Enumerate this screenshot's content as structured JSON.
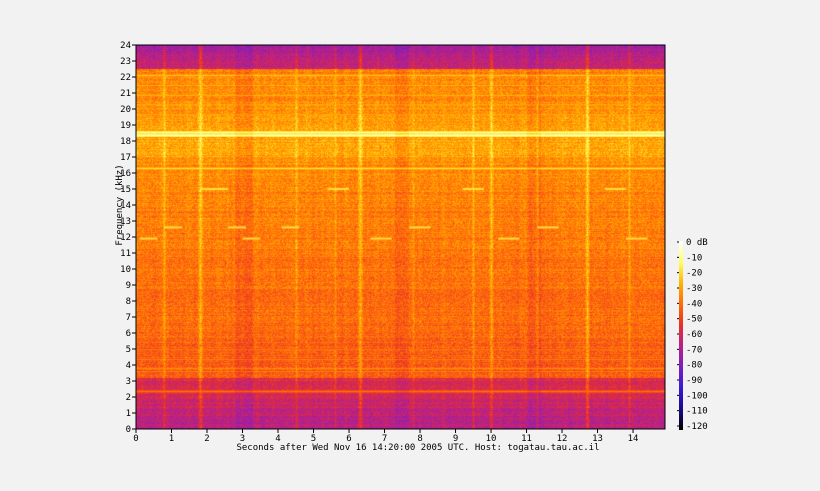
{
  "chart_data": {
    "type": "heatmap",
    "title": "",
    "xlabel": "Seconds after Wed Nov 16 14:20:00 2005 UTC. Host: togatau.tau.ac.il",
    "ylabel": "Frequency (kHz)",
    "xlim": [
      0,
      14.9
    ],
    "ylim": [
      0,
      24
    ],
    "x_ticks": [
      0,
      1,
      2,
      3,
      4,
      5,
      6,
      7,
      8,
      9,
      10,
      11,
      12,
      13,
      14
    ],
    "y_ticks": [
      0,
      1,
      2,
      3,
      4,
      5,
      6,
      7,
      8,
      9,
      10,
      11,
      12,
      13,
      14,
      15,
      16,
      17,
      18,
      19,
      20,
      21,
      22,
      23,
      24
    ],
    "colorbar": {
      "ticks": [
        "0 dB",
        "-10",
        "-20",
        "-30",
        "-40",
        "-50",
        "-60",
        "-70",
        "-80",
        "-90",
        "-100",
        "-110",
        "-120"
      ],
      "range_db": [
        -125,
        0
      ],
      "colormap": [
        "#000000",
        "#1a0a8c",
        "#3a1ad8",
        "#7a1fc0",
        "#b8208a",
        "#e8302a",
        "#ff6a0a",
        "#ffb300",
        "#ffff60",
        "#ffffff"
      ]
    },
    "levels_db": {
      "background_low": -70,
      "background_mid": -45,
      "background_high": -30,
      "top_band": -75
    },
    "horizontal_lines_khz": [
      {
        "f": 18.4,
        "db": -5
      },
      {
        "f": 18.55,
        "db": -8
      },
      {
        "f": 16.3,
        "db": -20
      },
      {
        "f": 22.1,
        "db": -25
      },
      {
        "f": 21.5,
        "db": -28
      },
      {
        "f": 20.9,
        "db": -28
      },
      {
        "f": 20.3,
        "db": -30
      },
      {
        "f": 19.7,
        "db": -30
      },
      {
        "f": 19.1,
        "db": -32
      },
      {
        "f": 3.8,
        "db": -35
      },
      {
        "f": 3.6,
        "db": -38
      },
      {
        "f": 4.4,
        "db": -38
      },
      {
        "f": 5.0,
        "db": -40
      },
      {
        "f": 2.4,
        "db": -40
      }
    ],
    "vertical_lines_s": [
      1.8,
      6.3,
      10.0,
      12.7,
      0.8,
      4.5,
      5.6,
      7.8,
      9.5,
      11.3,
      13.9
    ],
    "tone_segments": [
      {
        "t0": 1.8,
        "t1": 2.6,
        "f": 15.0
      },
      {
        "t0": 5.4,
        "t1": 6.0,
        "f": 15.0
      },
      {
        "t0": 9.2,
        "t1": 9.8,
        "f": 15.0
      },
      {
        "t0": 13.2,
        "t1": 13.8,
        "f": 15.0
      },
      {
        "t0": 0.8,
        "t1": 1.3,
        "f": 12.6
      },
      {
        "t0": 2.6,
        "t1": 3.1,
        "f": 12.6
      },
      {
        "t0": 4.1,
        "t1": 4.6,
        "f": 12.6
      },
      {
        "t0": 7.7,
        "t1": 8.3,
        "f": 12.6
      },
      {
        "t0": 11.3,
        "t1": 11.9,
        "f": 12.6
      },
      {
        "t0": 0.1,
        "t1": 0.6,
        "f": 11.9
      },
      {
        "t0": 3.0,
        "t1": 3.5,
        "f": 11.9
      },
      {
        "t0": 6.6,
        "t1": 7.2,
        "f": 11.9
      },
      {
        "t0": 10.2,
        "t1": 10.8,
        "f": 11.9
      },
      {
        "t0": 13.8,
        "t1": 14.4,
        "f": 11.9
      }
    ]
  }
}
